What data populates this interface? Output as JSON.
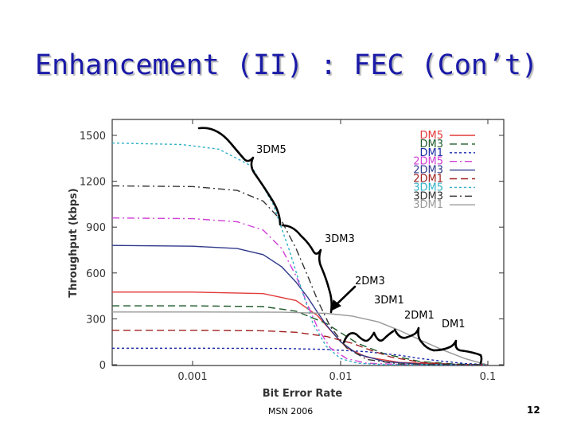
{
  "slide": {
    "title": "Enhancement (II) : FEC (Con’t)",
    "footer_left": "MSN 2006",
    "page_number": "12"
  },
  "chart_data": {
    "type": "line",
    "title": "",
    "xlabel": "Bit Error Rate",
    "ylabel": "Throughput (kbps)",
    "x_scale": "log",
    "xlim": [
      0.0002,
      0.1
    ],
    "ylim": [
      0,
      1600
    ],
    "x_ticks": [
      {
        "value": 0.001,
        "label": "0.001"
      },
      {
        "value": 0.01,
        "label": "0.01"
      },
      {
        "value": 0.1,
        "label": "0.1"
      }
    ],
    "y_ticks": [
      {
        "value": 0,
        "label": "0"
      },
      {
        "value": 300,
        "label": "300"
      },
      {
        "value": 600,
        "label": "600"
      },
      {
        "value": 900,
        "label": "900"
      },
      {
        "value": 1200,
        "label": "1200"
      },
      {
        "value": 1500,
        "label": "1500"
      }
    ],
    "grid": false,
    "legend_position": "top-right",
    "series": [
      {
        "name": "DM5",
        "color": "#e23a3a",
        "dash": "solid",
        "points": [
          [
            0.0002,
            475
          ],
          [
            0.001,
            475
          ],
          [
            0.003,
            465
          ],
          [
            0.005,
            420
          ],
          [
            0.007,
            320
          ],
          [
            0.009,
            200
          ],
          [
            0.011,
            110
          ],
          [
            0.015,
            50
          ],
          [
            0.025,
            15
          ],
          [
            0.05,
            3
          ],
          [
            0.1,
            0
          ]
        ]
      },
      {
        "name": "DM3",
        "color": "#1d5a2a",
        "dash": "dash",
        "points": [
          [
            0.0002,
            385
          ],
          [
            0.001,
            385
          ],
          [
            0.003,
            380
          ],
          [
            0.005,
            350
          ],
          [
            0.008,
            270
          ],
          [
            0.01,
            210
          ],
          [
            0.013,
            140
          ],
          [
            0.02,
            70
          ],
          [
            0.035,
            20
          ],
          [
            0.06,
            4
          ],
          [
            0.1,
            0
          ]
        ]
      },
      {
        "name": "DM1",
        "color": "#1a2aa8",
        "dash": "dot",
        "points": [
          [
            0.0002,
            108
          ],
          [
            0.001,
            108
          ],
          [
            0.004,
            106
          ],
          [
            0.008,
            100
          ],
          [
            0.015,
            85
          ],
          [
            0.025,
            62
          ],
          [
            0.035,
            40
          ],
          [
            0.05,
            22
          ],
          [
            0.07,
            8
          ],
          [
            0.09,
            3
          ],
          [
            0.1,
            0
          ]
        ]
      },
      {
        "name": "2DM5",
        "color": "#d040d8",
        "dash": "dashdot",
        "points": [
          [
            0.0002,
            960
          ],
          [
            0.001,
            955
          ],
          [
            0.002,
            935
          ],
          [
            0.003,
            880
          ],
          [
            0.004,
            760
          ],
          [
            0.005,
            580
          ],
          [
            0.006,
            390
          ],
          [
            0.007,
            240
          ],
          [
            0.0085,
            110
          ],
          [
            0.011,
            40
          ],
          [
            0.015,
            10
          ],
          [
            0.03,
            0
          ],
          [
            0.1,
            0
          ]
        ]
      },
      {
        "name": "2DM3",
        "color": "#303a8a",
        "dash": "solid",
        "points": [
          [
            0.0002,
            780
          ],
          [
            0.001,
            775
          ],
          [
            0.002,
            760
          ],
          [
            0.003,
            720
          ],
          [
            0.004,
            640
          ],
          [
            0.005,
            540
          ],
          [
            0.006,
            440
          ],
          [
            0.007,
            340
          ],
          [
            0.008,
            260
          ],
          [
            0.01,
            150
          ],
          [
            0.013,
            70
          ],
          [
            0.02,
            20
          ],
          [
            0.04,
            0
          ],
          [
            0.1,
            0
          ]
        ]
      },
      {
        "name": "2DM1",
        "color": "#a02020",
        "dash": "dash",
        "points": [
          [
            0.0002,
            225
          ],
          [
            0.001,
            225
          ],
          [
            0.003,
            222
          ],
          [
            0.005,
            212
          ],
          [
            0.008,
            185
          ],
          [
            0.012,
            140
          ],
          [
            0.016,
            95
          ],
          [
            0.022,
            50
          ],
          [
            0.035,
            15
          ],
          [
            0.06,
            2
          ],
          [
            0.1,
            0
          ]
        ]
      },
      {
        "name": "3DM5",
        "color": "#30b0c8",
        "dash": "dot",
        "points": [
          [
            0.0002,
            1450
          ],
          [
            0.0008,
            1440
          ],
          [
            0.0015,
            1410
          ],
          [
            0.0025,
            1300
          ],
          [
            0.0035,
            1050
          ],
          [
            0.0045,
            750
          ],
          [
            0.0055,
            480
          ],
          [
            0.0065,
            270
          ],
          [
            0.008,
            120
          ],
          [
            0.01,
            40
          ],
          [
            0.013,
            10
          ],
          [
            0.02,
            0
          ],
          [
            0.1,
            0
          ]
        ]
      },
      {
        "name": "3DM3",
        "color": "#333333",
        "dash": "dashdot",
        "points": [
          [
            0.0002,
            1170
          ],
          [
            0.001,
            1165
          ],
          [
            0.002,
            1140
          ],
          [
            0.003,
            1070
          ],
          [
            0.004,
            940
          ],
          [
            0.005,
            760
          ],
          [
            0.006,
            580
          ],
          [
            0.007,
            420
          ],
          [
            0.0085,
            250
          ],
          [
            0.011,
            110
          ],
          [
            0.015,
            35
          ],
          [
            0.025,
            5
          ],
          [
            0.1,
            0
          ]
        ]
      },
      {
        "name": "3DM1",
        "color": "#999999",
        "dash": "solid",
        "points": [
          [
            0.0002,
            345
          ],
          [
            0.001,
            345
          ],
          [
            0.004,
            343
          ],
          [
            0.008,
            336
          ],
          [
            0.012,
            318
          ],
          [
            0.018,
            280
          ],
          [
            0.025,
            225
          ],
          [
            0.035,
            160
          ],
          [
            0.05,
            95
          ],
          [
            0.07,
            40
          ],
          [
            0.09,
            10
          ],
          [
            0.1,
            0
          ]
        ]
      }
    ],
    "annotations": [
      {
        "text": "3DM5"
      },
      {
        "text": "3DM3"
      },
      {
        "text": "2DM3"
      },
      {
        "text": "3DM1"
      },
      {
        "text": "2DM1"
      },
      {
        "text": "DM1"
      }
    ]
  }
}
